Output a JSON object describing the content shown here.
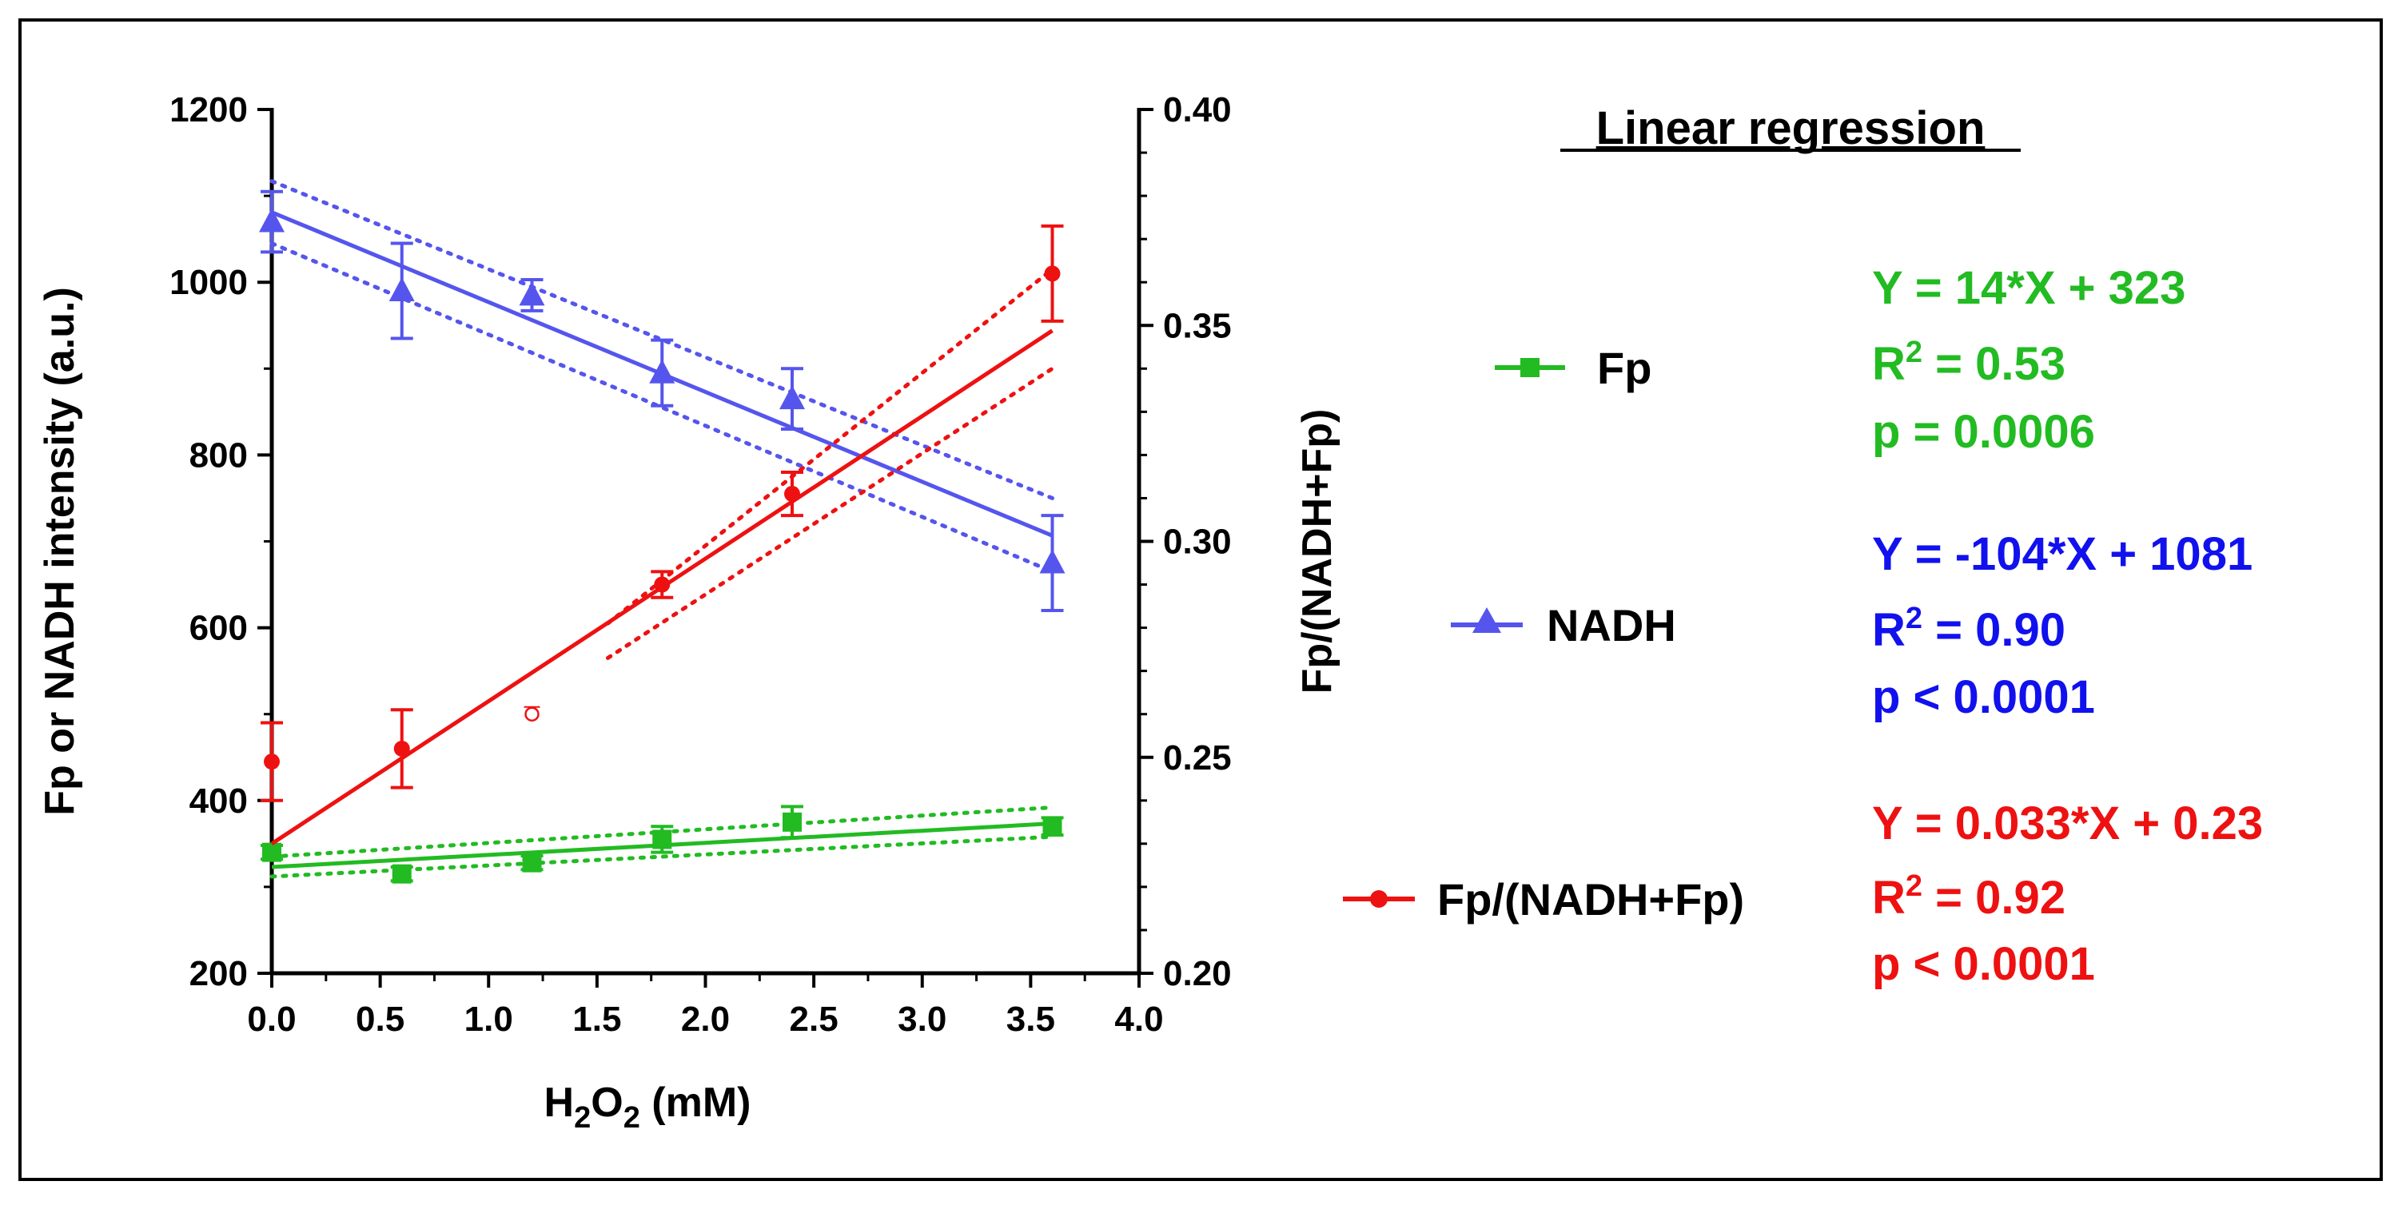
{
  "chart_data": {
    "type": "line",
    "xlabel_main": "H",
    "xlabel_sub1": "2",
    "xlabel_mid": "O",
    "xlabel_sub2": "2",
    "xlabel_tail": " (mM)",
    "ylabel_left": "Fp or NADH intensity (a.u.)",
    "ylabel_right": "Fp/(NADH+Fp)",
    "xlim": [
      0,
      4
    ],
    "ylim_left": [
      200,
      1200
    ],
    "ylim_right": [
      0.2,
      0.4
    ],
    "x_ticks": [
      "0.0",
      "0.5",
      "1.0",
      "1.5",
      "2.0",
      "2.5",
      "3.0",
      "3.5",
      "4.0"
    ],
    "y_left_ticks": [
      "200",
      "400",
      "600",
      "800",
      "1000",
      "1200"
    ],
    "y_right_ticks": [
      "0.20",
      "0.25",
      "0.30",
      "0.35",
      "0.40"
    ],
    "series": [
      {
        "name": "Fp",
        "axis": "left",
        "color": "#22bb22",
        "marker": "square",
        "x": [
          0,
          0.6,
          1.2,
          1.8,
          2.4,
          3.6
        ],
        "y": [
          340,
          315,
          328,
          355,
          375,
          370
        ],
        "err": [
          8,
          8,
          8,
          15,
          18,
          10
        ],
        "fit": {
          "slope": 14,
          "intercept": 323,
          "ci_start": [
            312,
            335
          ],
          "ci_end": [
            358,
            392
          ]
        }
      },
      {
        "name": "NADH",
        "axis": "left",
        "color": "#5555ee",
        "marker": "triangle",
        "x": [
          0,
          0.6,
          1.2,
          1.8,
          2.4,
          3.6
        ],
        "y": [
          1070,
          990,
          985,
          895,
          865,
          675
        ],
        "err": [
          35,
          55,
          18,
          38,
          35,
          55
        ],
        "fit": {
          "slope": -104,
          "intercept": 1081,
          "ci_start": [
            1045,
            1117
          ],
          "ci_end": [
            665,
            750
          ]
        }
      },
      {
        "name": "Fp/(NADH+Fp)",
        "axis": "right",
        "color": "#ee1111",
        "marker": "circle",
        "x": [
          0,
          0.6,
          1.8,
          2.4,
          3.6
        ],
        "y": [
          0.249,
          0.252,
          0.29,
          0.311,
          0.362
        ],
        "err": [
          0.009,
          0.009,
          0.003,
          0.005,
          0.011
        ],
        "fit": {
          "slope": 0.033,
          "intercept": 0.23,
          "ci_x_start": 1.55,
          "ci_start": [
            0.273,
            0.281
          ],
          "ci_end": [
            0.34,
            0.363
          ]
        }
      }
    ],
    "outlier_point": {
      "x": 1.2,
      "y": 0.26
    }
  },
  "legend": {
    "items": [
      {
        "label": "Fp",
        "color": "#22bb22",
        "marker": "square"
      },
      {
        "label": "NADH",
        "color": "#5555ee",
        "marker": "triangle"
      },
      {
        "label": "Fp/(NADH+Fp)",
        "color": "#ee1111",
        "marker": "circle"
      }
    ]
  },
  "regression": {
    "title": "Linear regression",
    "r_prefix": "R",
    "r_sup": "2",
    "blocks": [
      {
        "color": "#22bb22",
        "eq": "Y = 14*X + 323",
        "r2": " = 0.53",
        "p": "p = 0.0006"
      },
      {
        "color": "#1111ee",
        "eq": "Y = -104*X + 1081",
        "r2": " = 0.90",
        "p": "p < 0.0001"
      },
      {
        "color": "#ee1111",
        "eq": "Y = 0.033*X + 0.23",
        "r2": " = 0.92",
        "p": "p < 0.0001"
      }
    ]
  }
}
